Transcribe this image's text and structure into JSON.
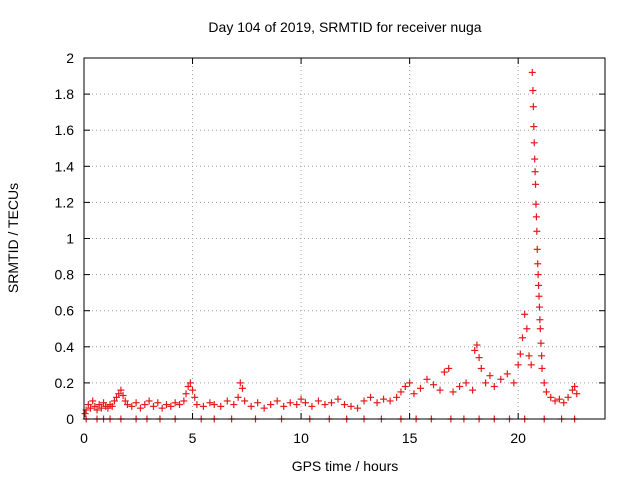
{
  "chart_data": {
    "type": "scatter",
    "title": "Day 104 of 2019, SRMTID for receiver nuga",
    "xlabel": "GPS time / hours",
    "ylabel": "SRMTID / TECUs",
    "xlim": [
      0,
      24
    ],
    "ylim": [
      0,
      2
    ],
    "xticks": [
      0,
      5,
      10,
      15,
      20
    ],
    "xtick_labels": [
      "0",
      "5",
      "10",
      "15",
      "20"
    ],
    "yticks": [
      0,
      0.2,
      0.4,
      0.6,
      0.8,
      1,
      1.2,
      1.4,
      1.6,
      1.8,
      2
    ],
    "ytick_labels": [
      "0",
      "0.2",
      "0.4",
      "0.6",
      "0.8",
      "1",
      "1.2",
      "1.4",
      "1.6",
      "1.8",
      "2"
    ],
    "grid": true,
    "marker": "plus",
    "color": "#e41a1c",
    "series": [
      {
        "name": "SRMTID",
        "points": [
          [
            0.05,
            0.03
          ],
          [
            0.1,
            0.05
          ],
          [
            0.2,
            0.08
          ],
          [
            0.3,
            0.06
          ],
          [
            0.4,
            0.1
          ],
          [
            0.5,
            0.07
          ],
          [
            0.6,
            0.05
          ],
          [
            0.7,
            0.08
          ],
          [
            0.8,
            0.06
          ],
          [
            0.9,
            0.09
          ],
          [
            1.0,
            0.07
          ],
          [
            1.1,
            0.06
          ],
          [
            1.2,
            0.08
          ],
          [
            1.3,
            0.07
          ],
          [
            1.4,
            0.1
          ],
          [
            1.5,
            0.12
          ],
          [
            1.6,
            0.14
          ],
          [
            1.7,
            0.16
          ],
          [
            1.8,
            0.13
          ],
          [
            1.9,
            0.1
          ],
          [
            2.0,
            0.08
          ],
          [
            2.2,
            0.07
          ],
          [
            2.4,
            0.09
          ],
          [
            2.6,
            0.06
          ],
          [
            2.8,
            0.08
          ],
          [
            3.0,
            0.1
          ],
          [
            3.2,
            0.07
          ],
          [
            3.4,
            0.09
          ],
          [
            3.6,
            0.06
          ],
          [
            3.8,
            0.08
          ],
          [
            4.0,
            0.07
          ],
          [
            4.2,
            0.09
          ],
          [
            4.4,
            0.08
          ],
          [
            4.6,
            0.1
          ],
          [
            4.7,
            0.14
          ],
          [
            4.8,
            0.18
          ],
          [
            4.9,
            0.2
          ],
          [
            5.0,
            0.16
          ],
          [
            5.1,
            0.12
          ],
          [
            5.2,
            0.08
          ],
          [
            5.5,
            0.07
          ],
          [
            5.8,
            0.09
          ],
          [
            6.0,
            0.08
          ],
          [
            6.3,
            0.07
          ],
          [
            6.6,
            0.1
          ],
          [
            6.9,
            0.08
          ],
          [
            7.1,
            0.12
          ],
          [
            7.2,
            0.2
          ],
          [
            7.3,
            0.17
          ],
          [
            7.4,
            0.1
          ],
          [
            7.7,
            0.07
          ],
          [
            8.0,
            0.09
          ],
          [
            8.3,
            0.06
          ],
          [
            8.6,
            0.08
          ],
          [
            8.9,
            0.1
          ],
          [
            9.2,
            0.07
          ],
          [
            9.5,
            0.09
          ],
          [
            9.8,
            0.08
          ],
          [
            10.0,
            0.11
          ],
          [
            10.2,
            0.09
          ],
          [
            10.5,
            0.07
          ],
          [
            10.8,
            0.1
          ],
          [
            11.1,
            0.08
          ],
          [
            11.4,
            0.09
          ],
          [
            11.7,
            0.11
          ],
          [
            12.0,
            0.08
          ],
          [
            12.3,
            0.07
          ],
          [
            12.6,
            0.06
          ],
          [
            12.9,
            0.1
          ],
          [
            13.2,
            0.12
          ],
          [
            13.5,
            0.09
          ],
          [
            13.8,
            0.11
          ],
          [
            14.1,
            0.1
          ],
          [
            14.4,
            0.12
          ],
          [
            14.6,
            0.15
          ],
          [
            14.8,
            0.18
          ],
          [
            15.0,
            0.2
          ],
          [
            15.2,
            0.14
          ],
          [
            15.5,
            0.17
          ],
          [
            15.8,
            0.22
          ],
          [
            16.1,
            0.19
          ],
          [
            16.4,
            0.16
          ],
          [
            16.6,
            0.26
          ],
          [
            16.8,
            0.28
          ],
          [
            17.0,
            0.15
          ],
          [
            17.3,
            0.18
          ],
          [
            17.6,
            0.2
          ],
          [
            17.9,
            0.16
          ],
          [
            18.0,
            0.38
          ],
          [
            18.1,
            0.41
          ],
          [
            18.2,
            0.34
          ],
          [
            18.3,
            0.28
          ],
          [
            18.5,
            0.2
          ],
          [
            18.7,
            0.24
          ],
          [
            18.9,
            0.18
          ],
          [
            19.2,
            0.22
          ],
          [
            19.5,
            0.25
          ],
          [
            19.8,
            0.2
          ],
          [
            20.0,
            0.3
          ],
          [
            20.1,
            0.36
          ],
          [
            20.2,
            0.45
          ],
          [
            20.3,
            0.58
          ],
          [
            20.4,
            0.5
          ],
          [
            20.5,
            0.35
          ],
          [
            20.6,
            0.3
          ],
          [
            20.65,
            1.92
          ],
          [
            20.68,
            1.82
          ],
          [
            20.7,
            1.73
          ],
          [
            20.72,
            1.62
          ],
          [
            20.74,
            1.53
          ],
          [
            20.76,
            1.44
          ],
          [
            20.78,
            1.37
          ],
          [
            20.8,
            1.3
          ],
          [
            20.82,
            1.19
          ],
          [
            20.84,
            1.12
          ],
          [
            20.86,
            1.04
          ],
          [
            20.88,
            0.94
          ],
          [
            20.9,
            0.86
          ],
          [
            20.92,
            0.8
          ],
          [
            20.94,
            0.74
          ],
          [
            20.96,
            0.68
          ],
          [
            20.98,
            0.62
          ],
          [
            21.0,
            0.55
          ],
          [
            21.02,
            0.5
          ],
          [
            21.05,
            0.42
          ],
          [
            21.08,
            0.35
          ],
          [
            21.1,
            0.28
          ],
          [
            21.2,
            0.2
          ],
          [
            21.3,
            0.15
          ],
          [
            21.5,
            0.12
          ],
          [
            21.7,
            0.1
          ],
          [
            21.9,
            0.11
          ],
          [
            22.1,
            0.09
          ],
          [
            22.3,
            0.12
          ],
          [
            22.5,
            0.16
          ],
          [
            22.6,
            0.18
          ],
          [
            22.7,
            0.14
          ]
        ]
      }
    ],
    "zero_points_x": [
      0.1,
      0.6,
      0.9,
      1.2,
      1.7,
      2.4,
      2.9,
      3.5,
      4.2,
      5.4,
      6.0,
      6.8,
      7.9,
      9.1,
      10.4,
      11.3,
      12.1,
      12.9,
      13.7,
      14.6,
      15.3,
      16.0,
      16.9,
      17.5,
      18.2,
      18.9,
      19.6,
      20.3,
      21.2,
      22.0,
      22.6
    ]
  }
}
